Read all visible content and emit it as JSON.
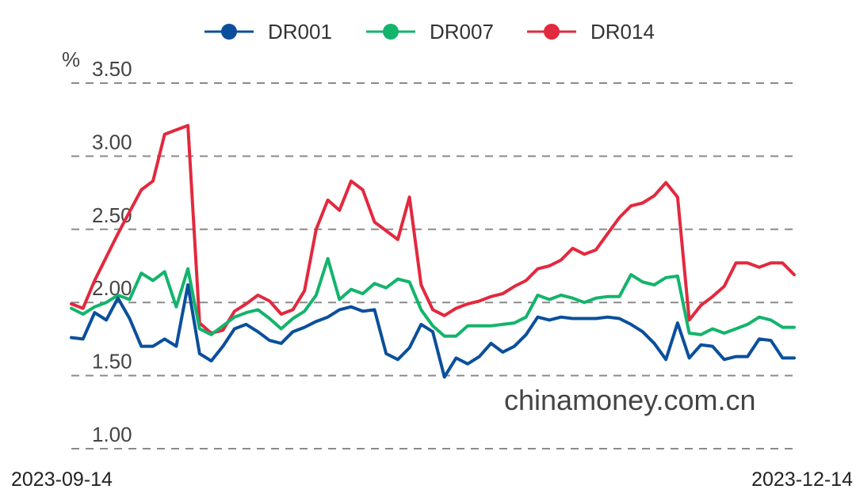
{
  "chart_data": {
    "type": "line",
    "unit": "%",
    "watermark": "chinamoney.com.cn",
    "ylim": [
      1.0,
      3.5
    ],
    "yticks": [
      "1.00",
      "1.50",
      "2.00",
      "2.50",
      "3.00",
      "3.50"
    ],
    "ytick_values": [
      1.0,
      1.5,
      2.0,
      2.5,
      3.0,
      3.5
    ],
    "grid": true,
    "legend_position": "top",
    "x_start_label": "2023-09-14",
    "x_end_label": "2023-12-14",
    "series": [
      {
        "name": "DR001",
        "color": "#0b4f9c",
        "values": [
          1.76,
          1.75,
          1.93,
          1.88,
          2.03,
          1.89,
          1.7,
          1.7,
          1.75,
          1.7,
          2.12,
          1.65,
          1.6,
          1.7,
          1.82,
          1.85,
          1.8,
          1.74,
          1.72,
          1.8,
          1.83,
          1.87,
          1.9,
          1.95,
          1.97,
          1.94,
          1.95,
          1.65,
          1.61,
          1.69,
          1.85,
          1.8,
          1.49,
          1.62,
          1.58,
          1.63,
          1.72,
          1.66,
          1.7,
          1.78,
          1.9,
          1.88,
          1.9,
          1.89,
          1.89,
          1.89,
          1.9,
          1.89,
          1.85,
          1.8,
          1.72,
          1.61,
          1.86,
          1.62,
          1.71,
          1.7,
          1.61,
          1.63,
          1.63,
          1.75,
          1.74,
          1.62,
          1.62
        ]
      },
      {
        "name": "DR007",
        "color": "#13b46c",
        "values": [
          1.96,
          1.92,
          1.97,
          2.0,
          2.05,
          2.02,
          2.2,
          2.15,
          2.21,
          1.97,
          2.23,
          1.82,
          1.78,
          1.84,
          1.9,
          1.93,
          1.95,
          1.89,
          1.82,
          1.89,
          1.94,
          2.05,
          2.3,
          2.02,
          2.09,
          2.06,
          2.13,
          2.1,
          2.16,
          2.14,
          1.95,
          1.84,
          1.77,
          1.77,
          1.84,
          1.84,
          1.84,
          1.85,
          1.86,
          1.9,
          2.05,
          2.02,
          2.05,
          2.03,
          2.0,
          2.03,
          2.04,
          2.04,
          2.19,
          2.14,
          2.12,
          2.17,
          2.18,
          1.79,
          1.78,
          1.82,
          1.79,
          1.82,
          1.85,
          1.9,
          1.88,
          1.83,
          1.83
        ]
      },
      {
        "name": "DR014",
        "color": "#e2293e",
        "values": [
          1.99,
          1.96,
          2.15,
          2.31,
          2.47,
          2.62,
          2.77,
          2.83,
          3.15,
          3.18,
          3.21,
          1.86,
          1.79,
          1.81,
          1.94,
          1.99,
          2.05,
          2.01,
          1.92,
          1.95,
          2.08,
          2.5,
          2.7,
          2.63,
          2.83,
          2.77,
          2.55,
          2.49,
          2.43,
          2.72,
          2.12,
          1.95,
          1.91,
          1.96,
          1.99,
          2.01,
          2.04,
          2.06,
          2.11,
          2.15,
          2.23,
          2.25,
          2.29,
          2.37,
          2.33,
          2.36,
          2.47,
          2.58,
          2.66,
          2.68,
          2.73,
          2.82,
          2.72,
          1.88,
          1.98,
          2.04,
          2.11,
          2.27,
          2.27,
          2.24,
          2.27,
          2.27,
          2.19
        ]
      }
    ]
  }
}
